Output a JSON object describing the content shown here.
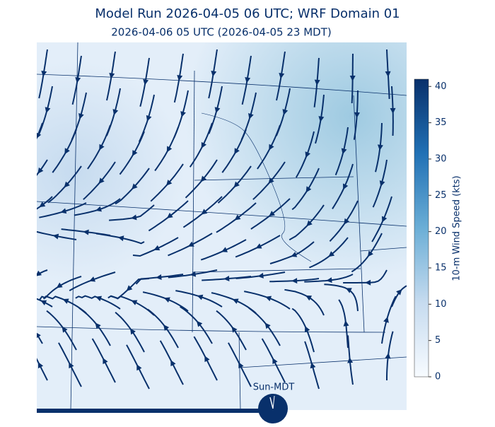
{
  "title": "Model Run 2026-04-05 06 UTC; WRF Domain 01",
  "subtitle": "2026-04-06 05 UTC  (2026-04-05 23 MDT)",
  "colorbar": {
    "label": "10-m Wind Speed (kts)",
    "lim": [
      0,
      41
    ],
    "ticks": [
      0,
      5,
      10,
      15,
      20,
      25,
      30,
      35,
      40
    ]
  },
  "clock_label": "Sun-MDT"
}
